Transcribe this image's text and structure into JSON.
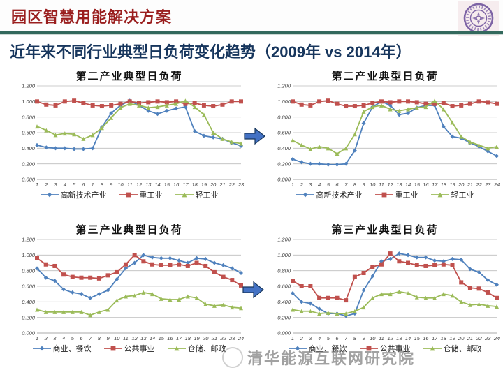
{
  "header": {
    "title": "园区智慧用能解决方案"
  },
  "logo": {
    "name": "tsinghua-university-seal",
    "color": "#7d63a5",
    "bg": "#f6ecee"
  },
  "main_title": "近年来不同行业典型日负荷变化趋势（2009年 vs 2014年）",
  "watermark": "清华能源互联网研究院",
  "colors": {
    "header_text": "#9a1f1f",
    "header_rule": "#33695d",
    "main_title_text": "#17365d",
    "series_blue": "#4F81BD",
    "series_red": "#C0504D",
    "series_green": "#9BBB59",
    "gridline": "#bdbdbd",
    "arrow_fill": "#4472C4",
    "arrow_edge": "#17375E"
  },
  "chart_data": [
    {
      "type": "line",
      "title": "第二产业典型日负荷",
      "x": [
        1,
        2,
        3,
        4,
        5,
        6,
        7,
        8,
        9,
        10,
        11,
        12,
        13,
        14,
        15,
        16,
        17,
        18,
        19,
        20,
        21,
        22,
        23
      ],
      "ylim": [
        0,
        1.2
      ],
      "yticks": [
        "1.200",
        "1.000",
        "0.800",
        "0.600",
        "0.400",
        "0.200",
        "0.000"
      ],
      "grid": true,
      "legend_position": "bottom",
      "series": [
        {
          "name": "高新技术产业",
          "color": "#4F81BD",
          "marker": "diamond",
          "values": [
            0.44,
            0.41,
            0.4,
            0.4,
            0.39,
            0.39,
            0.4,
            0.67,
            0.85,
            0.95,
            1.01,
            0.95,
            0.88,
            0.84,
            0.88,
            0.91,
            0.93,
            0.62,
            0.56,
            0.54,
            0.52,
            0.47,
            0.43
          ]
        },
        {
          "name": "重工业",
          "color": "#C0504D",
          "marker": "square",
          "values": [
            1.0,
            0.96,
            0.95,
            1.0,
            1.01,
            0.98,
            0.95,
            0.94,
            0.95,
            0.97,
            1.0,
            0.98,
            0.99,
            1.0,
            0.99,
            1.0,
            0.97,
            0.98,
            0.95,
            0.94,
            0.96,
            1.0,
            1.0
          ]
        },
        {
          "name": "轻工业",
          "color": "#9BBB59",
          "marker": "triangle",
          "values": [
            0.68,
            0.63,
            0.57,
            0.59,
            0.58,
            0.52,
            0.57,
            0.66,
            0.79,
            0.92,
            0.97,
            0.95,
            0.92,
            0.93,
            0.95,
            0.97,
            1.01,
            0.93,
            0.83,
            0.6,
            0.52,
            0.48,
            0.46
          ]
        }
      ]
    },
    {
      "type": "line",
      "title": "第二产业典型日负荷",
      "x": [
        1,
        2,
        3,
        4,
        5,
        6,
        7,
        8,
        9,
        10,
        11,
        12,
        13,
        14,
        15,
        16,
        17,
        18,
        19,
        20,
        21,
        22,
        23,
        24
      ],
      "ylim": [
        0,
        1.2
      ],
      "yticks": [
        "1.200",
        "1.000",
        "0.800",
        "0.600",
        "0.400",
        "0.200",
        "0.000"
      ],
      "grid": true,
      "legend_position": "bottom",
      "series": [
        {
          "name": "高新技术产业",
          "color": "#4F81BD",
          "marker": "diamond",
          "values": [
            0.26,
            0.22,
            0.2,
            0.2,
            0.19,
            0.19,
            0.2,
            0.37,
            0.72,
            0.93,
            1.0,
            0.95,
            0.83,
            0.85,
            0.92,
            0.95,
            0.95,
            0.68,
            0.55,
            0.53,
            0.47,
            0.42,
            0.36,
            0.3
          ]
        },
        {
          "name": "重工业",
          "color": "#C0504D",
          "marker": "square",
          "values": [
            1.0,
            0.96,
            0.95,
            1.0,
            1.01,
            0.97,
            0.94,
            0.94,
            0.95,
            0.98,
            1.0,
            0.99,
            1.0,
            1.0,
            0.99,
            0.97,
            0.97,
            0.98,
            0.94,
            0.95,
            0.97,
            1.0,
            0.99,
            0.97
          ]
        },
        {
          "name": "轻工业",
          "color": "#9BBB59",
          "marker": "triangle",
          "values": [
            0.5,
            0.44,
            0.39,
            0.42,
            0.4,
            0.33,
            0.4,
            0.58,
            0.87,
            0.93,
            0.95,
            0.9,
            0.88,
            0.9,
            0.92,
            0.93,
            1.01,
            0.9,
            0.73,
            0.55,
            0.48,
            0.44,
            0.4,
            0.42
          ]
        }
      ]
    },
    {
      "type": "line",
      "title": "第三产业典型日负荷",
      "x": [
        1,
        2,
        3,
        4,
        5,
        6,
        7,
        8,
        9,
        10,
        11,
        12,
        13,
        14,
        15,
        16,
        17,
        18,
        19,
        20,
        21,
        22,
        23,
        24
      ],
      "ylim": [
        0,
        1.2
      ],
      "yticks": [
        "1.200",
        "1.000",
        "0.800",
        "0.600",
        "0.400",
        "0.200",
        "0.000"
      ],
      "grid": true,
      "legend_position": "bottom",
      "series": [
        {
          "name": "商业、餐饮",
          "color": "#4F81BD",
          "marker": "diamond",
          "values": [
            0.83,
            0.71,
            0.67,
            0.56,
            0.52,
            0.5,
            0.45,
            0.5,
            0.55,
            0.69,
            0.83,
            0.9,
            1.0,
            0.97,
            0.96,
            0.96,
            0.93,
            0.9,
            0.96,
            0.95,
            0.9,
            0.87,
            0.83,
            0.77
          ]
        },
        {
          "name": "公共事业",
          "color": "#C0504D",
          "marker": "square",
          "values": [
            0.96,
            0.88,
            0.86,
            0.75,
            0.72,
            0.71,
            0.71,
            0.7,
            0.74,
            0.78,
            0.88,
            1.0,
            0.92,
            0.88,
            0.87,
            0.87,
            0.88,
            0.86,
            0.9,
            0.86,
            0.78,
            0.72,
            0.68,
            0.61
          ]
        },
        {
          "name": "仓储、邮政",
          "color": "#9BBB59",
          "marker": "triangle",
          "values": [
            0.3,
            0.27,
            0.27,
            0.27,
            0.27,
            0.27,
            0.23,
            0.27,
            0.3,
            0.42,
            0.47,
            0.48,
            0.52,
            0.5,
            0.44,
            0.43,
            0.43,
            0.47,
            0.45,
            0.37,
            0.35,
            0.36,
            0.33,
            0.32
          ]
        }
      ]
    },
    {
      "type": "line",
      "title": "第三产业典型日负荷",
      "x": [
        1,
        2,
        3,
        4,
        5,
        6,
        7,
        8,
        9,
        10,
        11,
        12,
        13,
        14,
        15,
        16,
        17,
        18,
        19,
        20,
        21,
        22,
        23,
        24
      ],
      "ylim": [
        0,
        1.2
      ],
      "yticks": [
        "1.200",
        "1.000",
        "0.800",
        "0.600",
        "0.400",
        "0.200",
        "0.000"
      ],
      "grid": true,
      "legend_position": "bottom",
      "series": [
        {
          "name": "商业、餐饮",
          "color": "#4F81BD",
          "marker": "diamond",
          "values": [
            0.51,
            0.4,
            0.38,
            0.31,
            0.25,
            0.25,
            0.22,
            0.25,
            0.55,
            0.73,
            0.92,
            0.95,
            1.02,
            1.0,
            0.97,
            0.97,
            0.93,
            0.92,
            0.95,
            0.94,
            0.82,
            0.78,
            0.68,
            0.62
          ]
        },
        {
          "name": "公共事业",
          "color": "#C0504D",
          "marker": "square",
          "values": [
            0.67,
            0.6,
            0.6,
            0.45,
            0.45,
            0.45,
            0.42,
            0.72,
            0.77,
            0.85,
            0.88,
            1.02,
            0.92,
            0.9,
            0.87,
            0.86,
            0.87,
            0.88,
            0.87,
            0.65,
            0.58,
            0.57,
            0.52,
            0.45
          ]
        },
        {
          "name": "仓储、邮政",
          "color": "#9BBB59",
          "marker": "triangle",
          "values": [
            0.3,
            0.28,
            0.28,
            0.25,
            0.26,
            0.25,
            0.25,
            0.28,
            0.33,
            0.45,
            0.5,
            0.5,
            0.53,
            0.51,
            0.46,
            0.45,
            0.45,
            0.5,
            0.48,
            0.4,
            0.36,
            0.37,
            0.35,
            0.34
          ]
        }
      ]
    }
  ]
}
